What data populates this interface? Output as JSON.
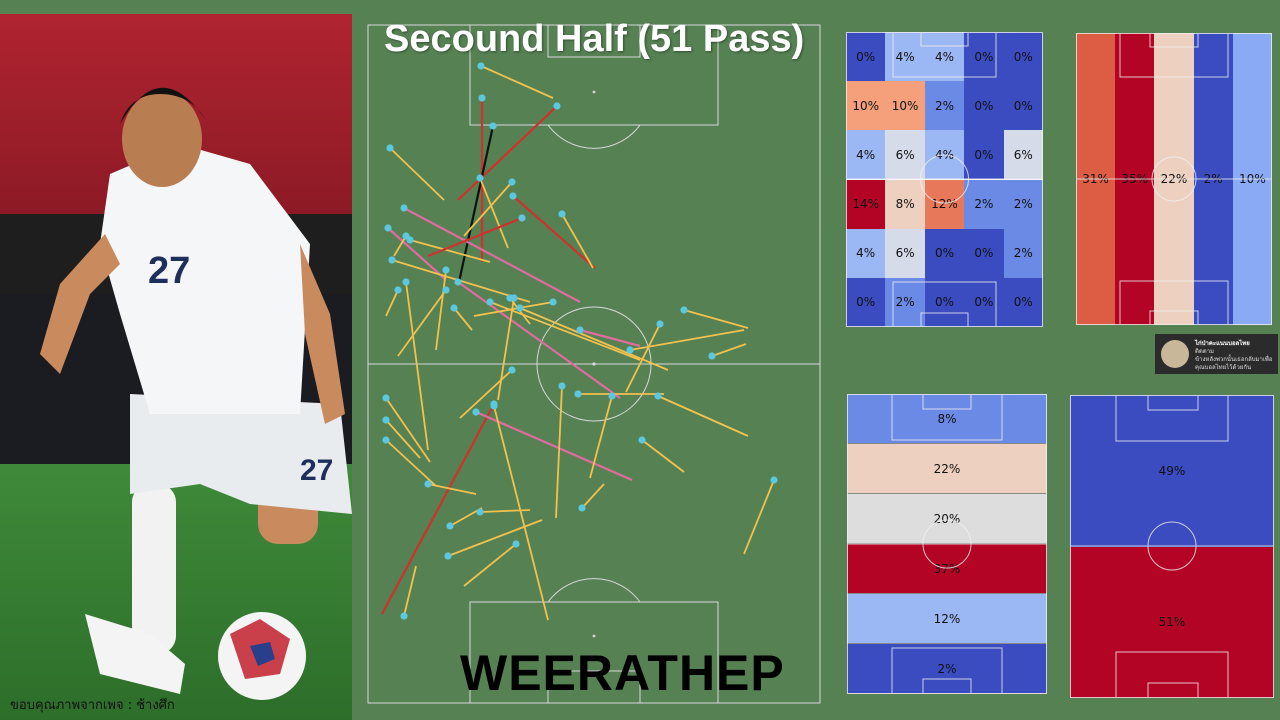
{
  "title": "Secound Half (51 Pass)",
  "player_name": "WEERATHEP",
  "photo_credit": "ขอบคุณภาพจากเพจ : ช้างศึก",
  "shirt_number": "27",
  "colors": {
    "background": "#568153",
    "pass_complete": "#f2c14e",
    "pass_key": "#e06c9f",
    "pass_failed": "#d0312d",
    "pass_assist": "#111111",
    "start_dot": "#5bc8e0"
  },
  "grid_5x6": {
    "rows": [
      [
        "0%",
        "4%",
        "4%",
        "0%",
        "0%"
      ],
      [
        "10%",
        "10%",
        "2%",
        "0%",
        "0%"
      ],
      [
        "4%",
        "6%",
        "4%",
        "0%",
        "6%"
      ],
      [
        "14%",
        "8%",
        "12%",
        "2%",
        "2%"
      ],
      [
        "4%",
        "6%",
        "0%",
        "0%",
        "2%"
      ],
      [
        "0%",
        "2%",
        "0%",
        "0%",
        "0%"
      ]
    ],
    "colors": [
      [
        "#3a4cc0",
        "#9bb8f5",
        "#9bb8f5",
        "#3a4cc0",
        "#3a4cc0"
      ],
      [
        "#f5a07a",
        "#f5a07a",
        "#6a8ae6",
        "#3a4cc0",
        "#3a4cc0"
      ],
      [
        "#9bb8f5",
        "#d5dbe8",
        "#9bb8f5",
        "#3a4cc0",
        "#d5dbe8"
      ],
      [
        "#b40426",
        "#eed0c0",
        "#e8785a",
        "#6a8ae6",
        "#6a8ae6"
      ],
      [
        "#9bb8f5",
        "#d5dbe8",
        "#3a4cc0",
        "#3a4cc0",
        "#6a8ae6"
      ],
      [
        "#3a4cc0",
        "#6a8ae6",
        "#3a4cc0",
        "#3a4cc0",
        "#3a4cc0"
      ]
    ]
  },
  "vertical_lanes": {
    "values": [
      "31%",
      "35%",
      "22%",
      "2%",
      "10%"
    ],
    "colors": [
      "#dc5c44",
      "#b40426",
      "#eed0c0",
      "#3a4cc0",
      "#8aaaf5"
    ]
  },
  "horizontal_bands": {
    "values": [
      "8%",
      "22%",
      "20%",
      "37%",
      "12%",
      "2%"
    ],
    "colors": [
      "#6a8ae6",
      "#eed0c0",
      "#dddddd",
      "#b40426",
      "#9bb8f5",
      "#3a4cc0"
    ]
  },
  "halves": {
    "values": [
      "49%",
      "51%"
    ],
    "colors": [
      "#3a4cc0",
      "#b40426"
    ]
  },
  "promo": {
    "line1": "ไก่ป่าคะแนนบอลไทย",
    "line2": "ติดตาม",
    "line3": "ข้างหลังพวกนั้นเธอกลับมาเพื่อคุณบอลไทยไว้ด้วยกัน"
  },
  "passes": [
    [
      481,
      66,
      553,
      98,
      "c"
    ],
    [
      482,
      98,
      482,
      262,
      "f"
    ],
    [
      557,
      106,
      458,
      200,
      "f"
    ],
    [
      493,
      126,
      459,
      282,
      "a"
    ],
    [
      390,
      148,
      444,
      200,
      "c"
    ],
    [
      513,
      196,
      595,
      268,
      "f"
    ],
    [
      404,
      208,
      580,
      302,
      "k"
    ],
    [
      562,
      214,
      593,
      268,
      "c"
    ],
    [
      512,
      182,
      464,
      236,
      "c"
    ],
    [
      480,
      178,
      508,
      248,
      "c"
    ],
    [
      410,
      240,
      490,
      262,
      "c"
    ],
    [
      522,
      218,
      428,
      256,
      "f"
    ],
    [
      388,
      228,
      446,
      280,
      "k"
    ],
    [
      406,
      236,
      394,
      256,
      "c"
    ],
    [
      458,
      282,
      620,
      398,
      "k"
    ],
    [
      446,
      270,
      436,
      350,
      "c"
    ],
    [
      392,
      260,
      530,
      302,
      "c"
    ],
    [
      553,
      302,
      474,
      316,
      "c"
    ],
    [
      454,
      308,
      472,
      330,
      "c"
    ],
    [
      406,
      282,
      428,
      450,
      "c"
    ],
    [
      490,
      302,
      640,
      360,
      "c"
    ],
    [
      398,
      290,
      386,
      316,
      "c"
    ],
    [
      510,
      298,
      530,
      324,
      "c"
    ],
    [
      514,
      298,
      498,
      400,
      "c"
    ],
    [
      446,
      290,
      398,
      356,
      "c"
    ],
    [
      520,
      308,
      668,
      370,
      "c"
    ],
    [
      580,
      330,
      640,
      346,
      "k"
    ],
    [
      684,
      310,
      748,
      328,
      "c"
    ],
    [
      630,
      350,
      744,
      330,
      "c"
    ],
    [
      712,
      356,
      746,
      344,
      "c"
    ],
    [
      660,
      324,
      626,
      392,
      "c"
    ],
    [
      512,
      370,
      460,
      418,
      "c"
    ],
    [
      386,
      398,
      430,
      462,
      "c"
    ],
    [
      386,
      420,
      420,
      458,
      "c"
    ],
    [
      386,
      440,
      436,
      486,
      "c"
    ],
    [
      494,
      404,
      382,
      614,
      "f"
    ],
    [
      476,
      412,
      632,
      480,
      "k"
    ],
    [
      562,
      386,
      556,
      518,
      "c"
    ],
    [
      578,
      394,
      664,
      394,
      "c"
    ],
    [
      612,
      396,
      590,
      478,
      "c"
    ],
    [
      658,
      396,
      748,
      436,
      "c"
    ],
    [
      642,
      440,
      684,
      472,
      "c"
    ],
    [
      494,
      406,
      548,
      620,
      "c"
    ],
    [
      428,
      484,
      476,
      494,
      "c"
    ],
    [
      480,
      512,
      530,
      510,
      "c"
    ],
    [
      450,
      526,
      482,
      508,
      "c"
    ],
    [
      448,
      556,
      542,
      520,
      "c"
    ],
    [
      516,
      544,
      464,
      586,
      "c"
    ],
    [
      582,
      508,
      604,
      484,
      "c"
    ],
    [
      774,
      480,
      744,
      554,
      "c"
    ],
    [
      404,
      616,
      416,
      566,
      "c"
    ]
  ]
}
